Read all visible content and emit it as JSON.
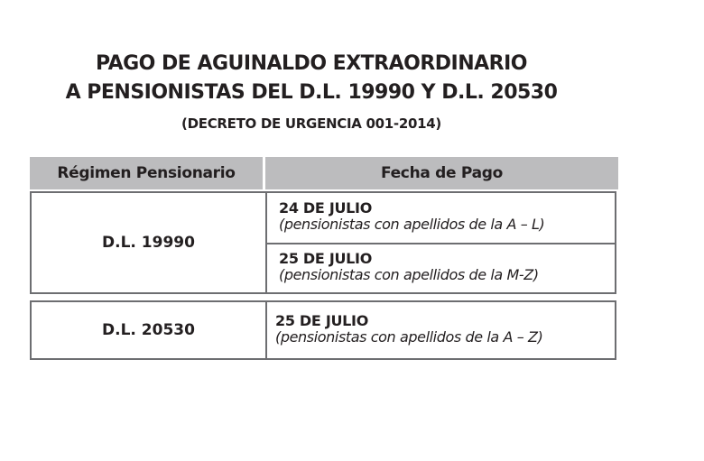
{
  "title": {
    "line1": "PAGO DE AGUINALDO EXTRAORDINARIO",
    "line2": "A PENSIONISTAS DEL D.L. 19990 Y D.L. 20530",
    "line3": "(DECRETO DE URGENCIA 001-2014)"
  },
  "table": {
    "headers": [
      "Régimen Pensionario",
      "Fecha de Pago"
    ],
    "rows": [
      {
        "regimen": "D.L. 19990",
        "pagos": [
          {
            "fecha": "24 DE JULIO",
            "detalle": "(pensionistas con apellidos de la A – L)"
          },
          {
            "fecha": "25 DE JULIO",
            "detalle": "(pensionistas con apellidos de la M-Z)"
          }
        ]
      },
      {
        "regimen": "D.L. 20530",
        "pagos": [
          {
            "fecha": "25 DE JULIO",
            "detalle": "(pensionistas con apellidos de la A – Z)"
          }
        ]
      }
    ]
  },
  "colors": {
    "header_bg": "#bcbcbe",
    "border": "#6d6e71",
    "text": "#231f20"
  }
}
